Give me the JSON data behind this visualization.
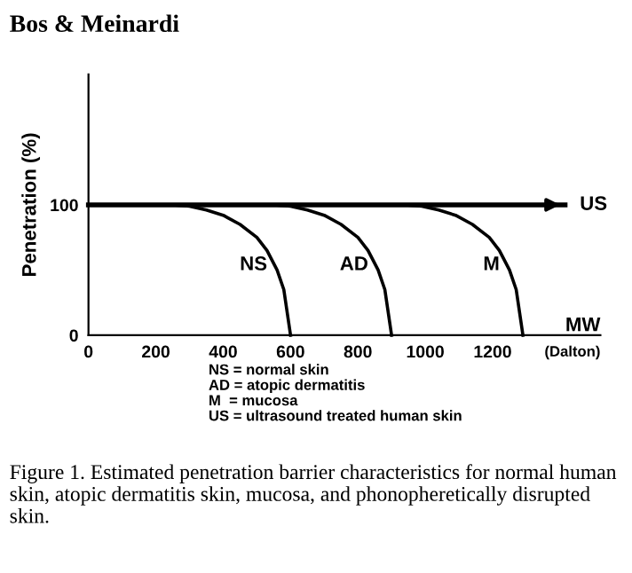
{
  "chart_data": {
    "type": "line",
    "title": "Bos & Meinardi",
    "xlabel": "MW",
    "ylabel": "Penetration (%)",
    "xlim": [
      0,
      1520
    ],
    "ylim": [
      0,
      200
    ],
    "xticks": [
      0,
      200,
      400,
      600,
      800,
      1000,
      1200
    ],
    "yticks": [
      0,
      100
    ],
    "grid": false,
    "marker": "none",
    "line_style": "solid",
    "series": [
      {
        "name": "US",
        "color": "#000000",
        "x": [
          0,
          1415
        ],
        "values": [
          100,
          100
        ]
      },
      {
        "name": "NS",
        "color": "#000000",
        "x": [
          0,
          250,
          300,
          350,
          400,
          450,
          500,
          530,
          560,
          580,
          600
        ],
        "values": [
          100,
          100,
          99,
          96,
          92,
          85,
          75,
          65,
          50,
          35,
          0
        ]
      },
      {
        "name": "AD",
        "color": "#000000",
        "x": [
          0,
          550,
          600,
          650,
          700,
          750,
          800,
          830,
          860,
          880,
          900
        ],
        "values": [
          100,
          100,
          99,
          96,
          92,
          85,
          75,
          65,
          50,
          35,
          0
        ]
      },
      {
        "name": "M",
        "color": "#000000",
        "x": [
          0,
          940,
          990,
          1040,
          1090,
          1140,
          1190,
          1220,
          1250,
          1270,
          1290
        ],
        "values": [
          100,
          100,
          99,
          96,
          92,
          85,
          75,
          65,
          50,
          35,
          0
        ]
      }
    ],
    "annotations": [
      "(Dalton)",
      "NS = normal skin\nAD = atopic dermatitis\nM  = mucosa\nUS = ultrasound treated human skin",
      "Figure 1. Estimated penetration barrier characteristics for normal human skin, atopic dermatitis skin, mucosa, and phonopheretically disrupted skin."
    ]
  }
}
